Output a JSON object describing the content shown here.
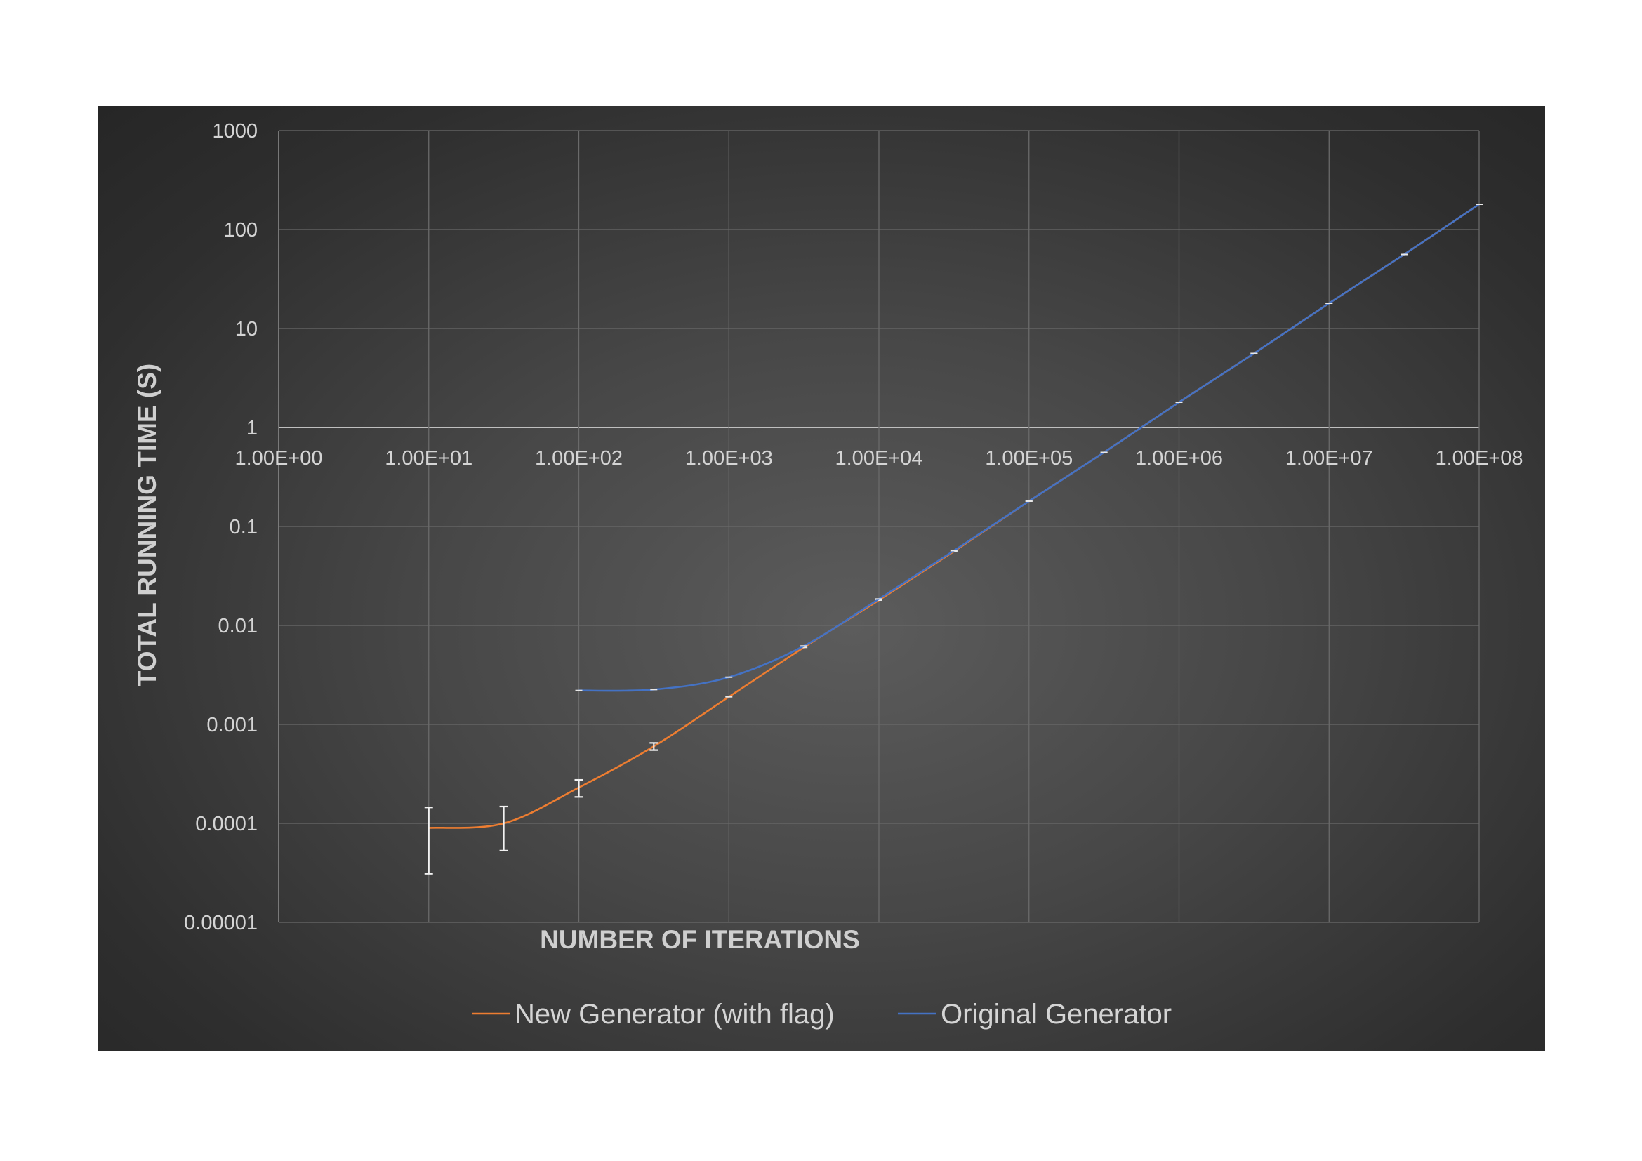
{
  "chart_data": {
    "type": "line",
    "xlabel": "NUMBER OF ITERATIONS",
    "ylabel": "TOTAL RUNNING TIME (S)",
    "x_scale": "log",
    "y_scale": "log",
    "xlim": [
      1,
      100000000
    ],
    "ylim": [
      1e-05,
      1000
    ],
    "x_ticks": [
      1,
      10,
      100,
      1000,
      10000,
      100000,
      1000000,
      10000000,
      100000000
    ],
    "x_tick_labels": [
      "1.00E+00",
      "1.00E+01",
      "1.00E+02",
      "1.00E+03",
      "1.00E+04",
      "1.00E+05",
      "1.00E+06",
      "1.00E+07",
      "1.00E+08"
    ],
    "y_ticks": [
      1000,
      100,
      10,
      1,
      0.1,
      0.01,
      0.001,
      0.0001,
      1e-05
    ],
    "y_tick_labels": [
      "1000",
      "100",
      "10",
      "1",
      "0.1",
      "0.01",
      "0.001",
      "0.0001",
      "0.00001"
    ],
    "grid": true,
    "legend_position": "bottom",
    "series": [
      {
        "name": "New Generator (with flag)",
        "color": "#ed7d31",
        "points": [
          {
            "x": 10,
            "y": 9e-05,
            "err_low": 3.1e-05,
            "err_high": 0.000145
          },
          {
            "x": 31.6,
            "y": 0.0001,
            "err_low": 5.3e-05,
            "err_high": 0.000148
          },
          {
            "x": 100,
            "y": 0.00023,
            "err_low": 0.000185,
            "err_high": 0.000275
          },
          {
            "x": 316,
            "y": 0.0006,
            "err_low": 0.00055,
            "err_high": 0.00065
          },
          {
            "x": 1000,
            "y": 0.0019
          },
          {
            "x": 3162,
            "y": 0.006
          },
          {
            "x": 10000,
            "y": 0.018
          },
          {
            "x": 31623,
            "y": 0.056
          },
          {
            "x": 100000,
            "y": 0.18
          },
          {
            "x": 316228,
            "y": 0.56
          },
          {
            "x": 1000000,
            "y": 1.8
          },
          {
            "x": 3162278,
            "y": 5.6
          },
          {
            "x": 10000000,
            "y": 18
          },
          {
            "x": 31622777,
            "y": 56
          },
          {
            "x": 100000000,
            "y": 180
          }
        ]
      },
      {
        "name": "Original Generator",
        "color": "#4472c4",
        "points": [
          {
            "x": 100,
            "y": 0.0022
          },
          {
            "x": 316,
            "y": 0.00225
          },
          {
            "x": 1000,
            "y": 0.003
          },
          {
            "x": 3162,
            "y": 0.0062
          },
          {
            "x": 10000,
            "y": 0.0185
          },
          {
            "x": 31623,
            "y": 0.057
          },
          {
            "x": 100000,
            "y": 0.18
          },
          {
            "x": 316228,
            "y": 0.56
          },
          {
            "x": 1000000,
            "y": 1.8
          },
          {
            "x": 3162278,
            "y": 5.6
          },
          {
            "x": 10000000,
            "y": 18
          },
          {
            "x": 31622777,
            "y": 56
          },
          {
            "x": 100000000,
            "y": 180
          }
        ]
      }
    ]
  }
}
